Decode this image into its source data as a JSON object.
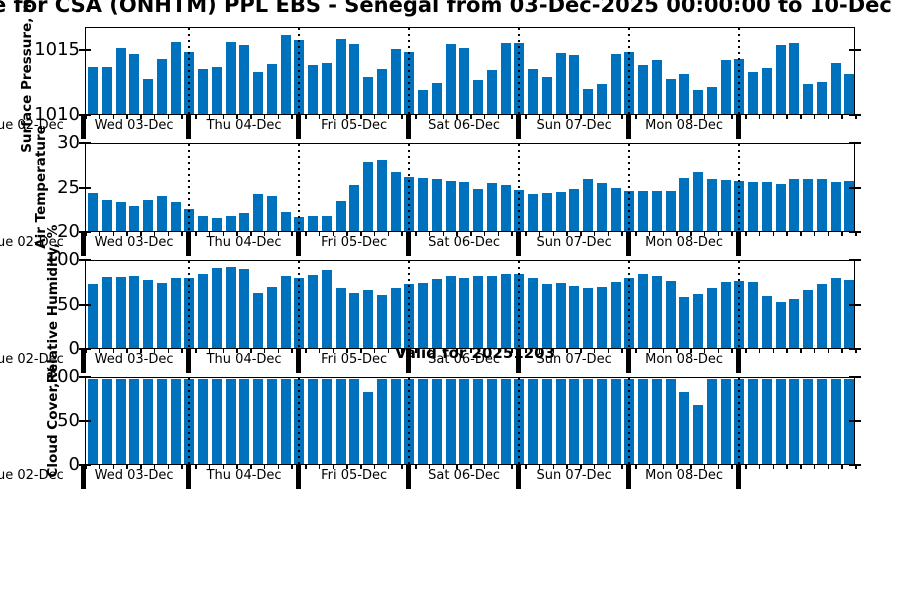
{
  "title": "e for CSA (ONHTM) PPL EBS  - Senegal from 03-Dec-2025 00:00:00 to 10-Dec",
  "valid_label": "Valid for 20251203",
  "colors": {
    "bar": "#0072bd",
    "axis": "#000000"
  },
  "x_axis": {
    "left_label": "Tue 02-Dec",
    "day_labels": [
      "Wed 03-Dec",
      "Thu 04-Dec",
      "Fri 05-Dec",
      "Sat 06-Dec",
      "Sun 07-Dec",
      "Mon 08-Dec"
    ],
    "bars_per_day": 8,
    "interval_hours": 3
  },
  "chart_data": [
    {
      "type": "bar",
      "ylabel": "Surface Pressure, mb",
      "ylim": [
        1010,
        1016.8
      ],
      "yticks": [
        1010,
        1015
      ],
      "values": [
        1013.8,
        1013.8,
        1015.3,
        1014.8,
        1012.8,
        1014.4,
        1015.8,
        1015.0,
        1013.6,
        1013.8,
        1015.8,
        1015.5,
        1013.4,
        1014.0,
        1016.3,
        1015.9,
        1013.9,
        1014.1,
        1016.0,
        1015.6,
        1013.0,
        1013.6,
        1015.2,
        1015.0,
        1011.9,
        1012.5,
        1015.6,
        1015.3,
        1012.7,
        1013.5,
        1015.7,
        1015.7,
        1013.6,
        1013.0,
        1014.9,
        1014.7,
        1012.0,
        1012.4,
        1014.8,
        1015.0,
        1013.9,
        1014.3,
        1012.8,
        1013.2,
        1011.9,
        1012.2,
        1014.3,
        1014.4,
        1013.4,
        1013.7,
        1015.5,
        1015.7,
        1012.4,
        1012.6,
        1014.1,
        1013.2
      ]
    },
    {
      "type": "bar",
      "ylabel": "Air Temperature",
      "ylim": [
        20,
        30
      ],
      "yticks": [
        20,
        25,
        30
      ],
      "values": [
        24.4,
        23.6,
        23.4,
        22.9,
        23.6,
        24.1,
        23.4,
        22.6,
        21.8,
        21.5,
        21.8,
        22.1,
        24.3,
        24.1,
        22.2,
        21.6,
        21.8,
        21.8,
        23.5,
        25.4,
        28.0,
        28.3,
        26.9,
        26.3,
        26.2,
        26.0,
        25.8,
        25.7,
        24.9,
        25.6,
        25.3,
        24.8,
        24.3,
        24.4,
        24.5,
        24.9,
        26.0,
        25.6,
        25.0,
        24.6,
        24.6,
        24.6,
        24.7,
        26.2,
        26.9,
        26.1,
        25.9,
        25.8,
        25.7,
        25.7,
        25.5,
        26.1,
        26.0,
        26.1,
        25.7,
        25.8
      ]
    },
    {
      "type": "bar",
      "ylabel": "Relative Humidity, %",
      "ylim": [
        0,
        100
      ],
      "yticks": [
        0,
        50,
        100
      ],
      "values": [
        74,
        83,
        83,
        84,
        79,
        76,
        82,
        82,
        86,
        93,
        94,
        92,
        64,
        71,
        84,
        82,
        85,
        91,
        70,
        64,
        67,
        62,
        70,
        74,
        76,
        80,
        84,
        82,
        84,
        84,
        86,
        86,
        81,
        74,
        76,
        72,
        70,
        71,
        77,
        82,
        86,
        84,
        78,
        59,
        63,
        70,
        77,
        78,
        77,
        61,
        53,
        57,
        68,
        74,
        81,
        79
      ]
    },
    {
      "type": "bar",
      "ylabel": "Cloud Cover, %",
      "ylim": [
        0,
        100
      ],
      "yticks": [
        0,
        50,
        100
      ],
      "values": [
        100,
        100,
        100,
        100,
        100,
        100,
        100,
        100,
        100,
        100,
        100,
        100,
        100,
        100,
        100,
        100,
        100,
        100,
        100,
        100,
        85,
        100,
        100,
        100,
        100,
        100,
        100,
        100,
        100,
        100,
        100,
        100,
        100,
        100,
        100,
        100,
        100,
        100,
        100,
        100,
        100,
        100,
        100,
        85,
        70,
        100,
        100,
        100,
        100,
        100,
        100,
        100,
        100,
        100,
        100,
        100
      ]
    }
  ]
}
